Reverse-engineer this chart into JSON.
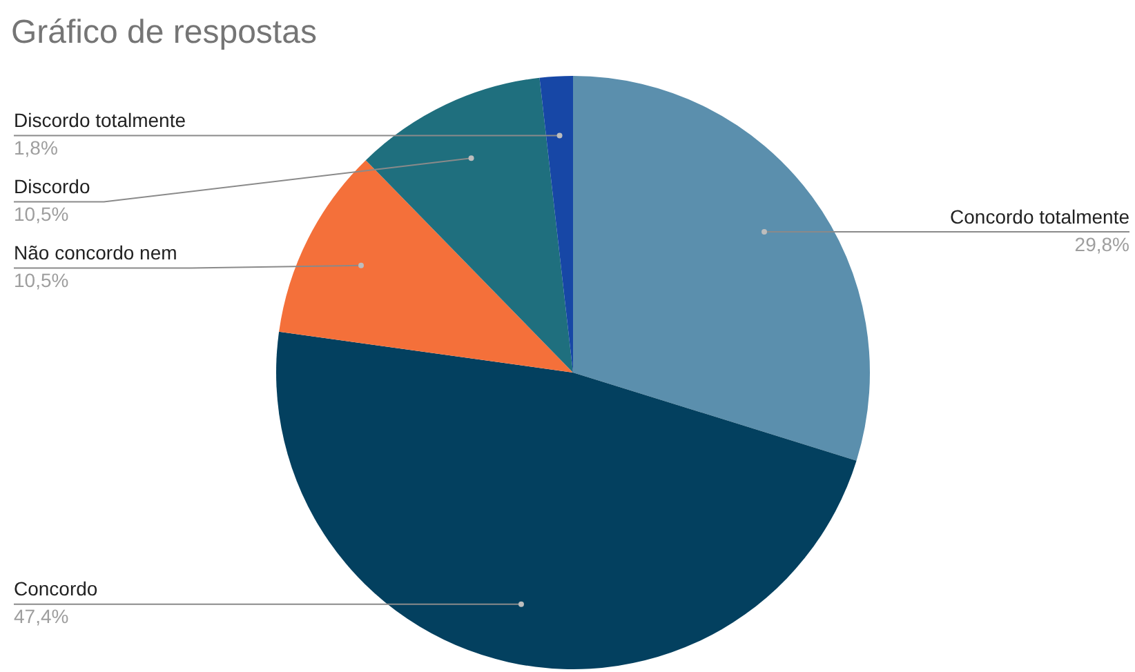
{
  "chart_data": {
    "type": "pie",
    "title": "Gráfico de respostas",
    "categories": [
      "Concordo totalmente",
      "Concordo",
      "Não concordo nem",
      "Discordo",
      "Discordo totalmente"
    ],
    "values": [
      29.8,
      47.4,
      10.5,
      10.5,
      1.8
    ],
    "value_labels": [
      "29,8%",
      "47,4%",
      "10,5%",
      "10,5%",
      "1,8%"
    ],
    "colors": [
      "#5b8fad",
      "#03405f",
      "#f4703a",
      "#1f6f7e",
      "#1747a6"
    ],
    "legend": false
  }
}
